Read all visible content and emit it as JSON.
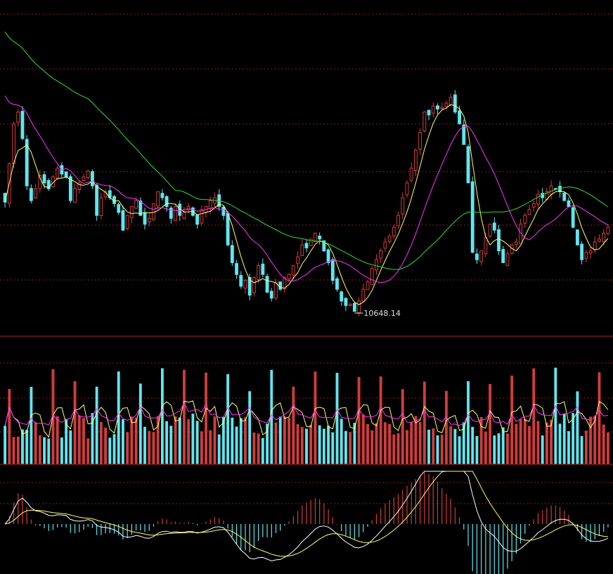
{
  "chart_data": [
    {
      "type": "candlestick",
      "panel": "price",
      "annotations": [
        {
          "text": "10648.14",
          "x_index": 80,
          "y": 10648.14
        }
      ],
      "ylim": [
        10520,
        12720
      ],
      "grid": true,
      "colors": {
        "up": "#d23c3c",
        "down": "#5fe6f0",
        "ma_fast": "#ffff66",
        "ma_mid": "#ff33ff",
        "ma_slow": "#33dd33",
        "grid": "#8a1e1e"
      },
      "close": [
        11390,
        11650,
        11920,
        12000,
        11820,
        11500,
        11400,
        11480,
        11570,
        11520,
        11480,
        11560,
        11620,
        11580,
        11560,
        11400,
        11480,
        11520,
        11560,
        11600,
        11500,
        11300,
        11420,
        11460,
        11420,
        11380,
        11320,
        11200,
        11300,
        11360,
        11400,
        11300,
        11240,
        11280,
        11380,
        11460,
        11420,
        11360,
        11280,
        11360,
        11300,
        11320,
        11360,
        11300,
        11240,
        11340,
        11360,
        11400,
        11420,
        11360,
        11300,
        11100,
        10980,
        10900,
        10820,
        10860,
        10760,
        10880,
        10960,
        10900,
        10780,
        10740,
        10840,
        10800,
        10880,
        10900,
        10960,
        11020,
        11100,
        11080,
        11140,
        11180,
        11140,
        11060,
        10980,
        10860,
        10800,
        10720,
        10690,
        10700,
        10650,
        10720,
        10800,
        10850,
        10940,
        11000,
        11060,
        11120,
        11160,
        11220,
        11300,
        11420,
        11520,
        11620,
        11740,
        11860,
        12000,
        11980,
        12040,
        12020,
        12030,
        12060,
        12100,
        12000,
        11920,
        11780,
        11520,
        11050,
        11000,
        11060,
        11150,
        11240,
        11200,
        11060,
        10980,
        11040,
        11100,
        11120,
        11240,
        11300,
        11340,
        11380,
        11440,
        11420,
        11460,
        11500,
        11480,
        11460,
        11400,
        11360,
        11220,
        11100,
        11000,
        11050,
        11060,
        11120,
        11140,
        11180,
        11220
      ]
    },
    {
      "type": "bar",
      "panel": "volume",
      "colors": {
        "up": "#d23c3c",
        "down": "#5fe6f0",
        "ma_fast": "#ffff66",
        "ma_slow": "#ff33ff"
      },
      "ylim": [
        0,
        100
      ]
    },
    {
      "type": "bar",
      "panel": "macd",
      "colors": {
        "positive": "#d23c3c",
        "negative": "#5fe6f0",
        "dif": "#ffffff",
        "dea": "#ffff66"
      }
    }
  ]
}
